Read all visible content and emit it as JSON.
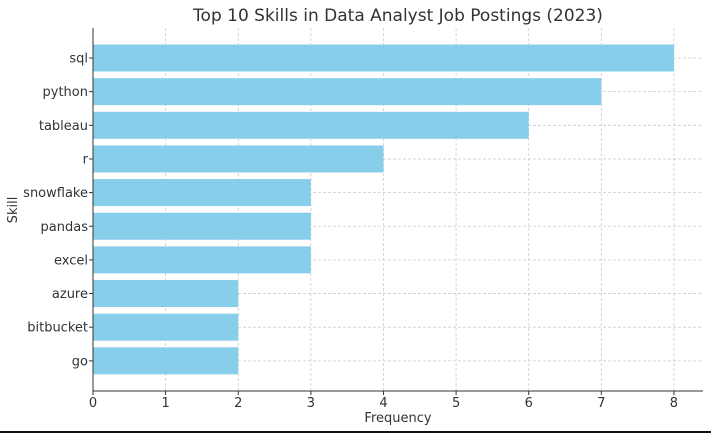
{
  "chart_data": {
    "type": "bar",
    "orientation": "horizontal",
    "title": "Top 10 Skills in Data Analyst Job Postings (2023)",
    "xlabel": "Frequency",
    "ylabel": "Skill",
    "categories": [
      "sql",
      "python",
      "tableau",
      "r",
      "snowflake",
      "pandas",
      "excel",
      "azure",
      "bitbucket",
      "go"
    ],
    "values": [
      8,
      7,
      6,
      4,
      3,
      3,
      3,
      2,
      2,
      2
    ],
    "xlim": [
      0,
      8.4
    ],
    "xticks": [
      "0",
      "1",
      "2",
      "3",
      "4",
      "5",
      "6",
      "7",
      "8"
    ],
    "grid": true,
    "bar_color": "#87ceeb"
  }
}
